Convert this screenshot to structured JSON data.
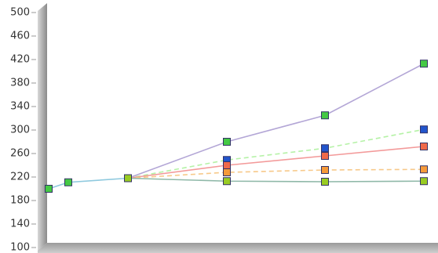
{
  "chart_data": {
    "type": "line",
    "categories": [
      null,
      null,
      null,
      null,
      null,
      null
    ],
    "ylim": [
      100,
      500
    ],
    "yticks": [
      100,
      140,
      180,
      220,
      260,
      300,
      340,
      380,
      420,
      460,
      500
    ],
    "series": [
      {
        "color": "#8ec9de",
        "marker": "#44c944",
        "dash": false,
        "values": [
          200,
          211,
          218,
          null,
          null,
          null
        ]
      },
      {
        "color": "#b3a6d6",
        "marker": "#44c944",
        "dash": false,
        "values": [
          null,
          null,
          218,
          280,
          325,
          413
        ]
      },
      {
        "color": "#b5f2a6",
        "marker": "#2255cc",
        "dash": true,
        "values": [
          null,
          null,
          218,
          249,
          269,
          301
        ]
      },
      {
        "color": "#f39a9a",
        "marker": "#f06a4a",
        "dash": false,
        "values": [
          null,
          null,
          218,
          240,
          256,
          272
        ]
      },
      {
        "color": "#f7c98a",
        "marker": "#f59a3a",
        "dash": true,
        "values": [
          null,
          null,
          218,
          228,
          232,
          233
        ]
      },
      {
        "color": "#8fb8a8",
        "marker": "#99cc22",
        "dash": false,
        "values": [
          null,
          null,
          218,
          213,
          212,
          213
        ]
      }
    ]
  }
}
